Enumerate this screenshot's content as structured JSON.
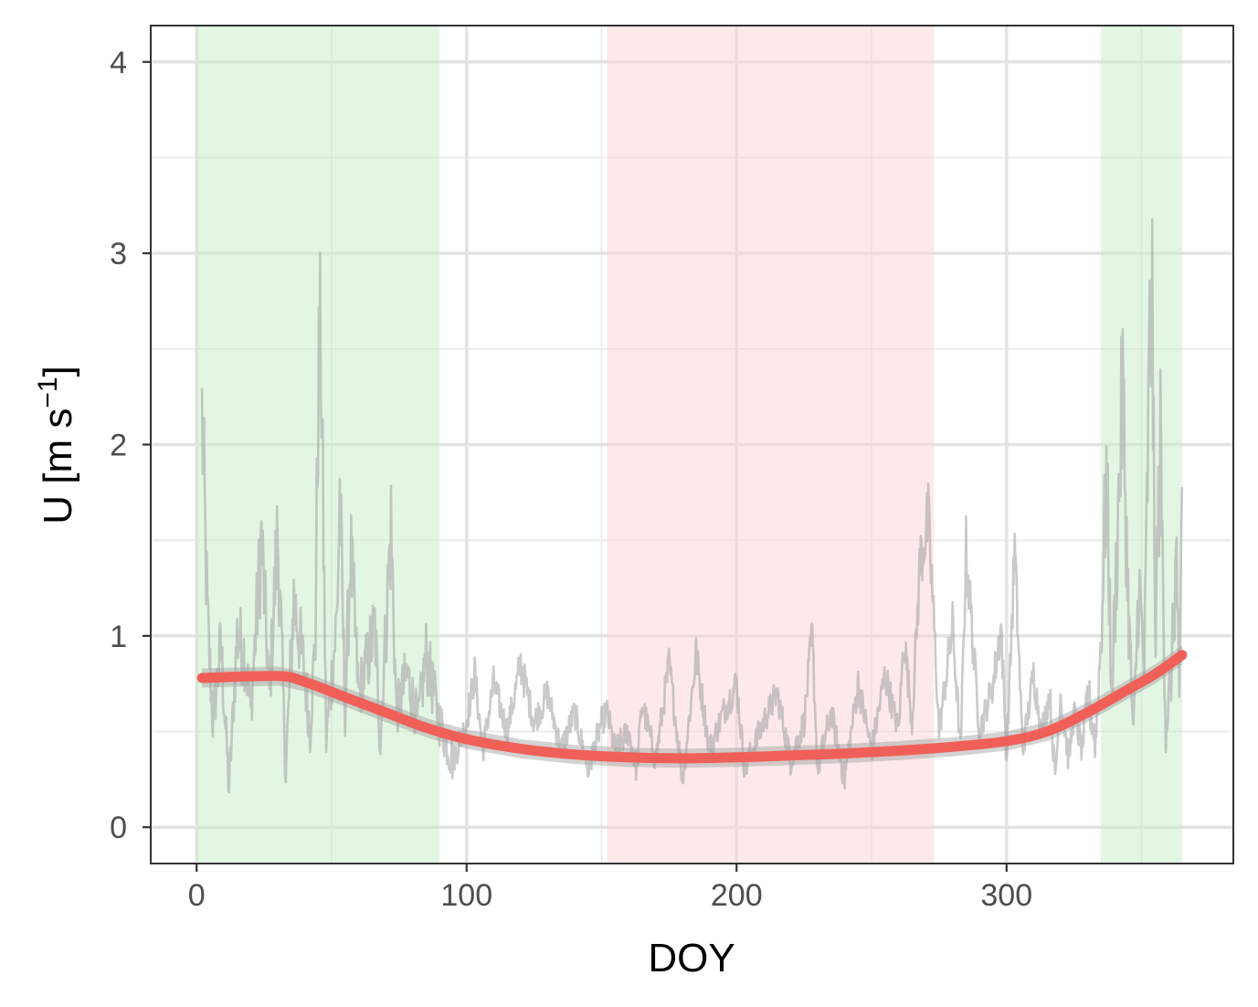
{
  "chart_data": {
    "type": "line",
    "xlabel": "DOY",
    "ylabel": "U [m s",
    "ylabel_superscript": "−1",
    "ylabel_suffix": "]",
    "xlim": [
      -17,
      384
    ],
    "ylim": [
      -0.19,
      4.19
    ],
    "x_ticks": [
      0,
      100,
      200,
      300
    ],
    "y_ticks": [
      0,
      1,
      2,
      3,
      4
    ],
    "x_minor": [
      50,
      150,
      250,
      350
    ],
    "y_minor": [
      0.5,
      1.5,
      2.5,
      3.5
    ],
    "grid": true,
    "legend": "none",
    "shaded_periods": [
      {
        "x_start": 0,
        "x_end": 90,
        "color": "#c8ecc8"
      },
      {
        "x_start": 152,
        "x_end": 273,
        "color": "#fbd4d4"
      },
      {
        "x_start": 335,
        "x_end": 365,
        "color": "#c8ecc8"
      }
    ],
    "series": [
      {
        "style": "daily",
        "color": "#a6a6a6",
        "x_start": 2,
        "x_end": 365,
        "anchors": [
          [
            2,
            2.15
          ],
          [
            4,
            1.1
          ],
          [
            6,
            0.55
          ],
          [
            9,
            0.95
          ],
          [
            12,
            0.2
          ],
          [
            15,
            1.0
          ],
          [
            18,
            0.9
          ],
          [
            20,
            0.6
          ],
          [
            24,
            1.5
          ],
          [
            27,
            0.7
          ],
          [
            30,
            1.55
          ],
          [
            33,
            0.3
          ],
          [
            36,
            1.2
          ],
          [
            40,
            0.8
          ],
          [
            42,
            0.5
          ],
          [
            44,
            1.0
          ],
          [
            45,
            2.25
          ],
          [
            46,
            2.55
          ],
          [
            48,
            0.45
          ],
          [
            52,
            1.1
          ],
          [
            53,
            1.75
          ],
          [
            55,
            0.6
          ],
          [
            57,
            1.45
          ],
          [
            60,
            0.7
          ],
          [
            63,
            0.85
          ],
          [
            66,
            1.05
          ],
          [
            68,
            0.45
          ],
          [
            72,
            1.57
          ],
          [
            74,
            0.6
          ],
          [
            78,
            0.8
          ],
          [
            82,
            0.55
          ],
          [
            85,
            0.9
          ],
          [
            90,
            0.55
          ],
          [
            95,
            0.35
          ],
          [
            100,
            0.55
          ],
          [
            103,
            0.8
          ],
          [
            106,
            0.4
          ],
          [
            110,
            0.75
          ],
          [
            115,
            0.5
          ],
          [
            120,
            0.85
          ],
          [
            125,
            0.55
          ],
          [
            130,
            0.7
          ],
          [
            135,
            0.4
          ],
          [
            140,
            0.6
          ],
          [
            145,
            0.3
          ],
          [
            150,
            0.55
          ],
          [
            152,
            0.6
          ],
          [
            155,
            0.4
          ],
          [
            160,
            0.5
          ],
          [
            163,
            0.3
          ],
          [
            165,
            0.65
          ],
          [
            170,
            0.35
          ],
          [
            175,
            0.85
          ],
          [
            180,
            0.25
          ],
          [
            185,
            0.9
          ],
          [
            190,
            0.4
          ],
          [
            195,
            0.6
          ],
          [
            200,
            0.75
          ],
          [
            203,
            0.3
          ],
          [
            210,
            0.55
          ],
          [
            215,
            0.7
          ],
          [
            220,
            0.35
          ],
          [
            225,
            0.55
          ],
          [
            228,
            1.0
          ],
          [
            230,
            0.3
          ],
          [
            235,
            0.6
          ],
          [
            240,
            0.25
          ],
          [
            245,
            0.75
          ],
          [
            250,
            0.4
          ],
          [
            255,
            0.8
          ],
          [
            260,
            0.5
          ],
          [
            262,
            1.0
          ],
          [
            265,
            0.55
          ],
          [
            268,
            1.4
          ],
          [
            271,
            1.6
          ],
          [
            273,
            1.1
          ],
          [
            275,
            0.5
          ],
          [
            280,
            1.05
          ],
          [
            283,
            0.4
          ],
          [
            285,
            1.45
          ],
          [
            290,
            0.5
          ],
          [
            295,
            0.75
          ],
          [
            298,
            1.05
          ],
          [
            300,
            0.35
          ],
          [
            303,
            1.45
          ],
          [
            306,
            0.4
          ],
          [
            310,
            0.8
          ],
          [
            313,
            0.5
          ],
          [
            316,
            0.7
          ],
          [
            318,
            0.25
          ],
          [
            320,
            0.7
          ],
          [
            323,
            0.35
          ],
          [
            325,
            0.6
          ],
          [
            328,
            0.4
          ],
          [
            330,
            0.7
          ],
          [
            333,
            0.45
          ],
          [
            335,
            1.0
          ],
          [
            337,
            1.85
          ],
          [
            339,
            0.7
          ],
          [
            341,
            1.5
          ],
          [
            343,
            2.3
          ],
          [
            345,
            1.2
          ],
          [
            347,
            0.45
          ],
          [
            349,
            1.3
          ],
          [
            351,
            0.8
          ],
          [
            353,
            2.5
          ],
          [
            354,
            2.7
          ],
          [
            355,
            1.0
          ],
          [
            357,
            2.0
          ],
          [
            359,
            0.5
          ],
          [
            361,
            0.8
          ],
          [
            363,
            1.45
          ],
          [
            364,
            0.55
          ],
          [
            365,
            1.75
          ]
        ]
      },
      {
        "style": "smooth",
        "color": "#f06058",
        "band_color": "#9e9e9e",
        "points": [
          [
            2,
            0.78
          ],
          [
            30,
            0.79
          ],
          [
            40,
            0.76
          ],
          [
            55,
            0.68
          ],
          [
            70,
            0.6
          ],
          [
            85,
            0.52
          ],
          [
            100,
            0.46
          ],
          [
            120,
            0.41
          ],
          [
            140,
            0.38
          ],
          [
            160,
            0.365
          ],
          [
            180,
            0.36
          ],
          [
            200,
            0.365
          ],
          [
            220,
            0.375
          ],
          [
            240,
            0.385
          ],
          [
            260,
            0.4
          ],
          [
            280,
            0.42
          ],
          [
            300,
            0.45
          ],
          [
            315,
            0.5
          ],
          [
            330,
            0.6
          ],
          [
            345,
            0.72
          ],
          [
            355,
            0.8
          ],
          [
            365,
            0.9
          ]
        ]
      }
    ]
  }
}
